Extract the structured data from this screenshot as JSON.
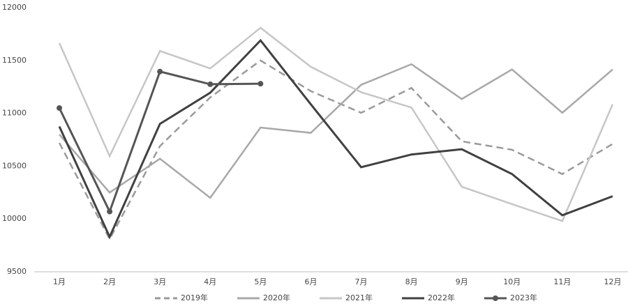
{
  "chart_data": {
    "type": "line",
    "categories": [
      "1月",
      "2月",
      "3月",
      "4月",
      "5月",
      "6月",
      "7月",
      "8月",
      "9月",
      "10月",
      "11月",
      "12月"
    ],
    "series": [
      {
        "name": "2019年",
        "color": "#9a9a9a",
        "dash": true,
        "marker": false,
        "values": [
          10720,
          9810,
          10690,
          11150,
          11500,
          11210,
          11005,
          11240,
          10735,
          10655,
          10425,
          10710
        ]
      },
      {
        "name": "2020年",
        "color": "#a8a8a8",
        "dash": false,
        "marker": false,
        "values": [
          10800,
          10250,
          10570,
          10200,
          10865,
          10815,
          11270,
          11465,
          11135,
          11415,
          11005,
          11415
        ]
      },
      {
        "name": "2021年",
        "color": "#c6c6c6",
        "dash": false,
        "marker": false,
        "values": [
          11665,
          10595,
          11590,
          11425,
          11810,
          11440,
          11200,
          11055,
          10305,
          10140,
          9980,
          11085
        ]
      },
      {
        "name": "2022年",
        "color": "#404040",
        "dash": false,
        "marker": false,
        "values": [
          10875,
          9830,
          10900,
          11195,
          11690,
          11085,
          10490,
          10610,
          10660,
          10425,
          10035,
          10215
        ]
      },
      {
        "name": "2023年",
        "color": "#555555",
        "dash": false,
        "marker": true,
        "values": [
          11050,
          10070,
          11395,
          11275,
          11280,
          null,
          null,
          null,
          null,
          null,
          null,
          null
        ]
      }
    ],
    "ylim": [
      9500,
      12000
    ],
    "yticks": [
      9500,
      10000,
      10500,
      11000,
      11500,
      12000
    ],
    "grid": false,
    "legend": "bottom"
  }
}
